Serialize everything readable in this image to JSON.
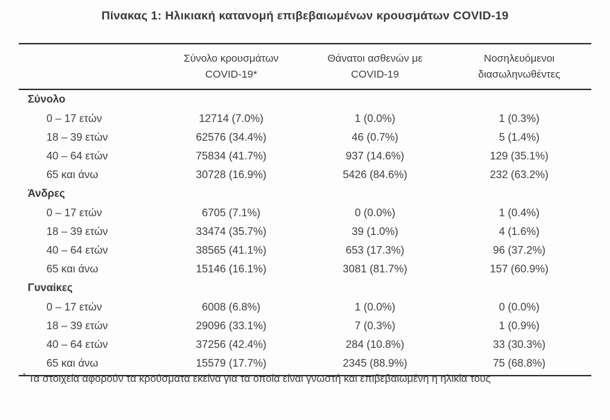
{
  "title": "Πίνακας 1: Ηλικιακή κατανομή επιβεβαιωμένων κρουσμάτων COVID-19",
  "table": {
    "columns": [
      {
        "line1": "Σύνολο κρουσμάτων",
        "line2": "COVID-19*"
      },
      {
        "line1": "Θάνατοι ασθενών με",
        "line2": "COVID-19"
      },
      {
        "line1": "Νοσηλευόμενοι",
        "line2": "διασωληνωθέντες"
      }
    ],
    "sections": [
      {
        "label": "Σύνολο",
        "rows": [
          {
            "age": "0 – 17 ετών",
            "cases": "12714 (7.0%)",
            "deaths": "1 (0.0%)",
            "intubated": "1 (0.3%)"
          },
          {
            "age": "18 – 39 ετών",
            "cases": "62576 (34.4%)",
            "deaths": "46 (0.7%)",
            "intubated": "5 (1.4%)"
          },
          {
            "age": "40 – 64 ετών",
            "cases": "75834 (41.7%)",
            "deaths": "937 (14.6%)",
            "intubated": "129 (35.1%)"
          },
          {
            "age": "65 και άνω",
            "cases": "30728 (16.9%)",
            "deaths": "5426 (84.6%)",
            "intubated": "232 (63.2%)"
          }
        ]
      },
      {
        "label": "Άνδρες",
        "rows": [
          {
            "age": "0 – 17 ετών",
            "cases": "6705 (7.1%)",
            "deaths": "0 (0.0%)",
            "intubated": "1 (0.4%)"
          },
          {
            "age": "18 – 39 ετών",
            "cases": "33474 (35.7%)",
            "deaths": "39 (1.0%)",
            "intubated": "4 (1.6%)"
          },
          {
            "age": "40 – 64 ετών",
            "cases": "38565 (41.1%)",
            "deaths": "653 (17.3%)",
            "intubated": "96 (37.2%)"
          },
          {
            "age": "65 και άνω",
            "cases": "15146 (16.1%)",
            "deaths": "3081 (81.7%)",
            "intubated": "157 (60.9%)"
          }
        ]
      },
      {
        "label": "Γυναίκες",
        "rows": [
          {
            "age": "0 – 17 ετών",
            "cases": "6008 (6.8%)",
            "deaths": "1 (0.0%)",
            "intubated": "0 (0.0%)"
          },
          {
            "age": "18 – 39 ετών",
            "cases": "29096 (33.1%)",
            "deaths": "7 (0.3%)",
            "intubated": "1 (0.9%)"
          },
          {
            "age": "40 – 64 ετών",
            "cases": "37256 (42.4%)",
            "deaths": "284 (10.8%)",
            "intubated": "33 (30.3%)"
          },
          {
            "age": "65 και άνω",
            "cases": "15579 (17.7%)",
            "deaths": "2345 (88.9%)",
            "intubated": "75 (68.8%)"
          }
        ]
      }
    ]
  },
  "footnote": {
    "marker": "*",
    "text": "Τα στοιχεία αφορούν τα κρούσματα εκείνα για τα οποία είναι γνωστή και επιβεβαιωμένη η ηλικία τους"
  },
  "colors": {
    "text": "#3d3d3f",
    "line": "#313133",
    "background": "#fdfdfd"
  }
}
